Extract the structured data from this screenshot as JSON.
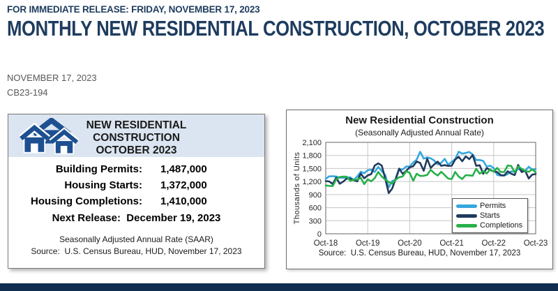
{
  "page": {
    "release_line": "FOR IMMEDIATE RELEASE: FRIDAY, NOVEMBER 17, 2023",
    "title": "MONTHLY NEW RESIDENTIAL CONSTRUCTION, OCTOBER 2023",
    "date": "NOVEMBER 17, 2023",
    "release_number": "CB23-194",
    "accent_navy": "#1e3c5f",
    "footer_bar_color": "#112e51"
  },
  "summary_card": {
    "title": "NEW RESIDENTIAL CONSTRUCTION OCTOBER 2023",
    "icon": "houses-icon",
    "header_bg": "#dbe5f1",
    "house_color": "#1d4f91",
    "stats": [
      {
        "label": "Building Permits:",
        "value": "1,487,000"
      },
      {
        "label": "Housing Starts:",
        "value": "1,372,000"
      },
      {
        "label": "Housing Completions:",
        "value": "1,410,000"
      }
    ],
    "next_release": "Next Release:  December 19, 2023",
    "note": "Seasonally Adjusted Annual Rate (SAAR)",
    "source": "Source:  U.S. Census Bureau, HUD, November 17, 2023"
  },
  "chart_data": {
    "type": "line",
    "title": "New Residential Construction",
    "subtitle": "(Seasonally Adjusted Annual Rate)",
    "ylabel": "Thousands of Units",
    "ylim": [
      0,
      2100
    ],
    "ytick_step": 300,
    "yticks_labels": [
      "0",
      "300",
      "600",
      "900",
      "1,200",
      "1,500",
      "1,800",
      "2,100"
    ],
    "xticks": [
      "Oct-18",
      "Oct-19",
      "Oct-20",
      "Oct-21",
      "Oct-22",
      "Oct-23"
    ],
    "grid": true,
    "legend_position": "bottom-right",
    "source": "Source:  U.S. Census Bureau, HUD, November 17, 2023",
    "series": [
      {
        "name": "Permits",
        "color": "#35a7dd",
        "values": [
          1265,
          1320,
          1322,
          1316,
          1287,
          1288,
          1290,
          1299,
          1232,
          1317,
          1425,
          1391,
          1461,
          1474,
          1420,
          1536,
          1438,
          1350,
          1066,
          1212,
          1241,
          1483,
          1476,
          1545,
          1549,
          1635,
          1704,
          1883,
          1726,
          1755,
          1733,
          1683,
          1594,
          1630,
          1721,
          1586,
          1653,
          1717,
          1885,
          1841,
          1857,
          1879,
          1823,
          1695,
          1696,
          1674,
          1542,
          1564,
          1512,
          1351,
          1337,
          1339,
          1371,
          1437,
          1417,
          1496,
          1441,
          1443,
          1541,
          1471,
          1487
        ]
      },
      {
        "name": "Starts",
        "color": "#1f3a5c",
        "values": [
          1211,
          1202,
          1142,
          1291,
          1149,
          1199,
          1270,
          1265,
          1235,
          1204,
          1383,
          1274,
          1340,
          1371,
          1567,
          1617,
          1567,
          1269,
          934,
          1038,
          1265,
          1497,
          1376,
          1448,
          1528,
          1551,
          1661,
          1625,
          1447,
          1725,
          1514,
          1594,
          1657,
          1562,
          1576,
          1559,
          1563,
          1706,
          1768,
          1666,
          1777,
          1716,
          1805,
          1562,
          1575,
          1377,
          1508,
          1465,
          1432,
          1419,
          1348,
          1340,
          1436,
          1380,
          1348,
          1583,
          1418,
          1451,
          1269,
          1358,
          1372
        ]
      },
      {
        "name": "Completions",
        "color": "#27b04a",
        "values": [
          1111,
          1099,
          1097,
          1250,
          1303,
          1313,
          1312,
          1217,
          1244,
          1242,
          1288,
          1139,
          1250,
          1205,
          1277,
          1420,
          1316,
          1244,
          1191,
          1151,
          1244,
          1298,
          1317,
          1437,
          1398,
          1216,
          1379,
          1329,
          1332,
          1351,
          1470,
          1391,
          1338,
          1423,
          1348,
          1268,
          1256,
          1421,
          1315,
          1259,
          1347,
          1341,
          1334,
          1493,
          1381,
          1439,
          1385,
          1479,
          1425,
          1513,
          1419,
          1421,
          1569,
          1558,
          1413,
          1546,
          1494,
          1445,
          1423,
          1479,
          1410
        ]
      }
    ]
  }
}
